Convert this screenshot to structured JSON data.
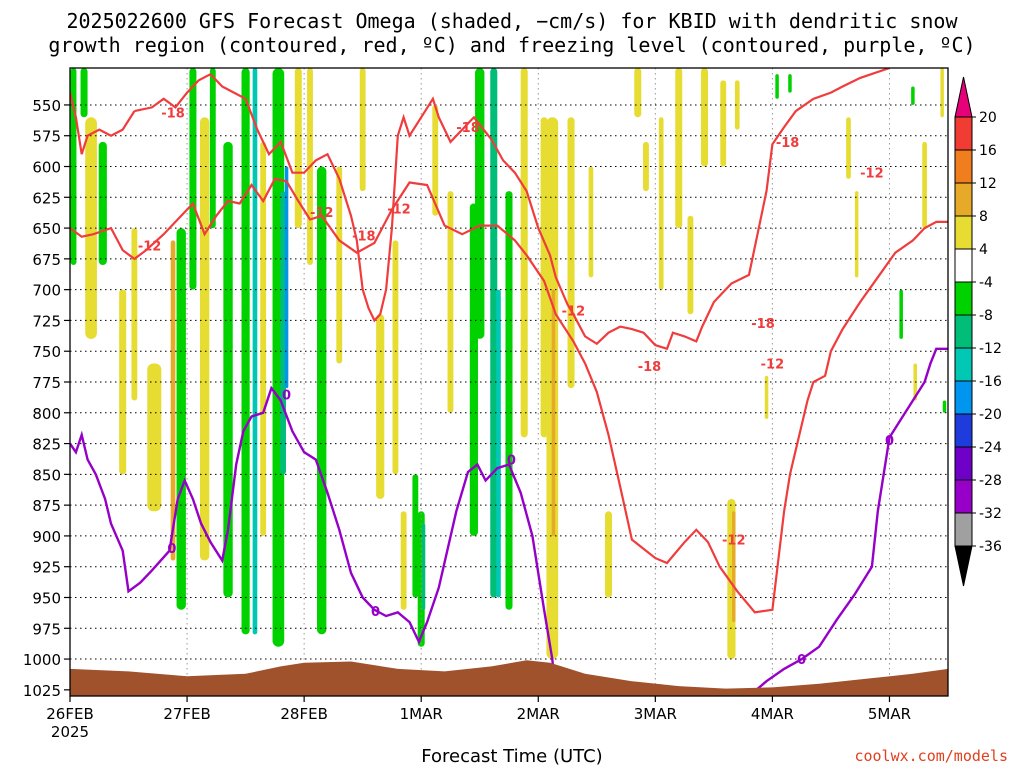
{
  "chart_data": {
    "type": "heatmap",
    "title_line1": "2025022600 GFS Forecast Omega (shaded, −cm/s) for KBID with dendritic snow",
    "title_line2": "growth region (contoured, red, ºC) and freezing level (contoured, purple, ºC)",
    "xlabel": "Forecast Time (UTC)",
    "credit": "coolwx.com/models",
    "x_ticks": [
      "26FEB",
      "27FEB",
      "28FEB",
      "1MAR",
      "2MAR",
      "3MAR",
      "4MAR",
      "5MAR"
    ],
    "x_year": "2025",
    "x_range_days": [
      0,
      7.5
    ],
    "y_ticks": [
      "550",
      "575",
      "600",
      "625",
      "650",
      "675",
      "700",
      "725",
      "750",
      "775",
      "800",
      "825",
      "850",
      "875",
      "900",
      "925",
      "950",
      "975",
      "1000",
      "1025"
    ],
    "y_range_hpa": [
      1030,
      520
    ],
    "grid": true,
    "colorbar": {
      "levels": [
        -36,
        -32,
        -28,
        -24,
        -20,
        -16,
        -12,
        -8,
        -4,
        4,
        8,
        12,
        16,
        20
      ],
      "labels": [
        "20",
        "16",
        "12",
        "8",
        "4",
        "-4",
        "-8",
        "-12",
        "-16",
        "-20",
        "-24",
        "-28",
        "-32",
        "-36"
      ],
      "colors": {
        "gt20": "#e6007a",
        "16_20": "#f03c32",
        "12_16": "#f07d1e",
        "8_12": "#e6aa28",
        "4_8": "#e6dc32",
        "neutral": "#ffffff",
        "m8_m4": "#00d200",
        "m12_m8": "#00be78",
        "m16_m12": "#00c8b4",
        "m20_m16": "#0096f0",
        "m24_m20": "#1e3cdc",
        "m28_m24": "#6e00c8",
        "m32_m28": "#9600c8",
        "m36_m32": "#a0a0a0",
        "lt36": "#000000"
      }
    },
    "contour_colors": {
      "dgz": "#f03c3c",
      "freezing": "#9600c8",
      "terrain": "#a0522d"
    },
    "contour_labels": [
      {
        "text": "-18",
        "day": 0.88,
        "p": 556
      },
      {
        "text": "-12",
        "day": 0.68,
        "p": 664
      },
      {
        "text": "-12",
        "day": 2.15,
        "p": 637
      },
      {
        "text": "-12",
        "day": 2.81,
        "p": 634
      },
      {
        "text": "-18",
        "day": 2.51,
        "p": 656
      },
      {
        "text": "-18",
        "day": 3.4,
        "p": 568
      },
      {
        "text": "-12",
        "day": 4.3,
        "p": 717
      },
      {
        "text": "-18",
        "day": 4.95,
        "p": 762
      },
      {
        "text": "-18",
        "day": 5.92,
        "p": 727
      },
      {
        "text": "-18",
        "day": 6.13,
        "p": 580
      },
      {
        "text": "-12",
        "day": 6.85,
        "p": 605
      },
      {
        "text": "-12",
        "day": 6.0,
        "p": 760
      },
      {
        "text": "-12",
        "day": 5.67,
        "p": 903
      },
      {
        "text": "0",
        "day": 0.87,
        "p": 910
      },
      {
        "text": "0",
        "day": 1.85,
        "p": 785
      },
      {
        "text": "0",
        "day": 2.61,
        "p": 961
      },
      {
        "text": "0",
        "day": 3.77,
        "p": 838
      },
      {
        "text": "0",
        "day": 6.25,
        "p": 1000
      },
      {
        "text": "0",
        "day": 7.0,
        "p": 822
      }
    ],
    "dgz_minus12": [
      [
        [
          0,
          650
        ],
        [
          0.1,
          657
        ],
        [
          0.2,
          655
        ],
        [
          0.35,
          650
        ],
        [
          0.45,
          668
        ],
        [
          0.55,
          675
        ],
        [
          0.65,
          668
        ],
        [
          0.8,
          655
        ],
        [
          0.95,
          640
        ],
        [
          1.05,
          630
        ],
        [
          1.15,
          655
        ],
        [
          1.25,
          640
        ],
        [
          1.35,
          628
        ],
        [
          1.45,
          630
        ],
        [
          1.55,
          615
        ],
        [
          1.65,
          628
        ],
        [
          1.75,
          610
        ],
        [
          1.85,
          612
        ],
        [
          1.95,
          628
        ],
        [
          2.05,
          643
        ],
        [
          2.15,
          640
        ],
        [
          2.3,
          660
        ],
        [
          2.45,
          670
        ],
        [
          2.6,
          662
        ],
        [
          2.75,
          635
        ],
        [
          2.9,
          613
        ],
        [
          3.05,
          615
        ],
        [
          3.2,
          648
        ],
        [
          3.35,
          655
        ],
        [
          3.5,
          648
        ],
        [
          3.65,
          648
        ],
        [
          3.8,
          660
        ],
        [
          3.9,
          672
        ],
        [
          4.05,
          693
        ],
        [
          4.15,
          720
        ],
        [
          4.3,
          742
        ],
        [
          4.4,
          760
        ],
        [
          4.5,
          783
        ],
        [
          4.6,
          818
        ],
        [
          4.7,
          860
        ],
        [
          4.8,
          903
        ],
        [
          5.0,
          918
        ],
        [
          5.1,
          922
        ],
        [
          5.25,
          905
        ],
        [
          5.35,
          895
        ],
        [
          5.45,
          905
        ],
        [
          5.55,
          925
        ],
        [
          5.7,
          945
        ],
        [
          5.85,
          962
        ],
        [
          6.0,
          960
        ],
        [
          6.1,
          880
        ],
        [
          6.15,
          850
        ],
        [
          6.2,
          830
        ],
        [
          6.3,
          790
        ],
        [
          6.35,
          775
        ],
        [
          6.45,
          770
        ],
        [
          6.5,
          750
        ],
        [
          6.6,
          732
        ],
        [
          6.75,
          710
        ],
        [
          6.9,
          690
        ],
        [
          7.05,
          670
        ],
        [
          7.2,
          660
        ],
        [
          7.3,
          650
        ],
        [
          7.4,
          645
        ],
        [
          7.5,
          645
        ]
      ]
    ],
    "dgz_minus18": [
      [
        [
          0.55,
          555
        ],
        [
          0.7,
          552
        ],
        [
          0.8,
          545
        ],
        [
          0.9,
          552
        ],
        [
          1.0,
          540
        ],
        [
          1.1,
          530
        ],
        [
          1.2,
          525
        ],
        [
          1.3,
          535
        ],
        [
          1.4,
          540
        ],
        [
          1.5,
          545
        ],
        [
          1.6,
          570
        ],
        [
          1.7,
          590
        ],
        [
          1.8,
          580
        ],
        [
          1.9,
          605
        ],
        [
          2.0,
          605
        ],
        [
          2.1,
          595
        ],
        [
          2.2,
          590
        ],
        [
          2.3,
          610
        ],
        [
          2.4,
          640
        ],
        [
          2.45,
          660
        ],
        [
          2.5,
          700
        ],
        [
          2.55,
          715
        ],
        [
          2.6,
          725
        ],
        [
          2.65,
          720
        ],
        [
          2.7,
          700
        ],
        [
          2.75,
          650
        ],
        [
          2.8,
          575
        ],
        [
          2.85,
          560
        ],
        [
          2.9,
          575
        ],
        [
          3.0,
          560
        ],
        [
          3.1,
          545
        ],
        [
          3.15,
          560
        ],
        [
          3.25,
          580
        ],
        [
          3.35,
          570
        ],
        [
          3.45,
          560
        ],
        [
          3.6,
          578
        ],
        [
          3.7,
          595
        ],
        [
          3.8,
          605
        ],
        [
          3.9,
          620
        ],
        [
          4.0,
          650
        ],
        [
          4.1,
          672
        ],
        [
          4.15,
          690
        ],
        [
          4.25,
          712
        ],
        [
          4.3,
          720
        ],
        [
          4.4,
          738
        ],
        [
          4.5,
          744
        ],
        [
          4.6,
          735
        ],
        [
          4.7,
          730
        ],
        [
          4.8,
          732
        ],
        [
          4.9,
          735
        ],
        [
          5.0,
          745
        ],
        [
          5.1,
          748
        ],
        [
          5.15,
          735
        ],
        [
          5.25,
          738
        ],
        [
          5.35,
          742
        ],
        [
          5.4,
          730
        ],
        [
          5.5,
          710
        ],
        [
          5.65,
          695
        ],
        [
          5.8,
          688
        ],
        [
          5.95,
          620
        ],
        [
          6.0,
          582
        ],
        [
          6.1,
          568
        ],
        [
          6.2,
          555
        ],
        [
          6.35,
          545
        ],
        [
          6.5,
          540
        ],
        [
          6.6,
          535
        ],
        [
          6.75,
          528
        ],
        [
          7.0,
          520
        ]
      ]
    ]
  }
}
